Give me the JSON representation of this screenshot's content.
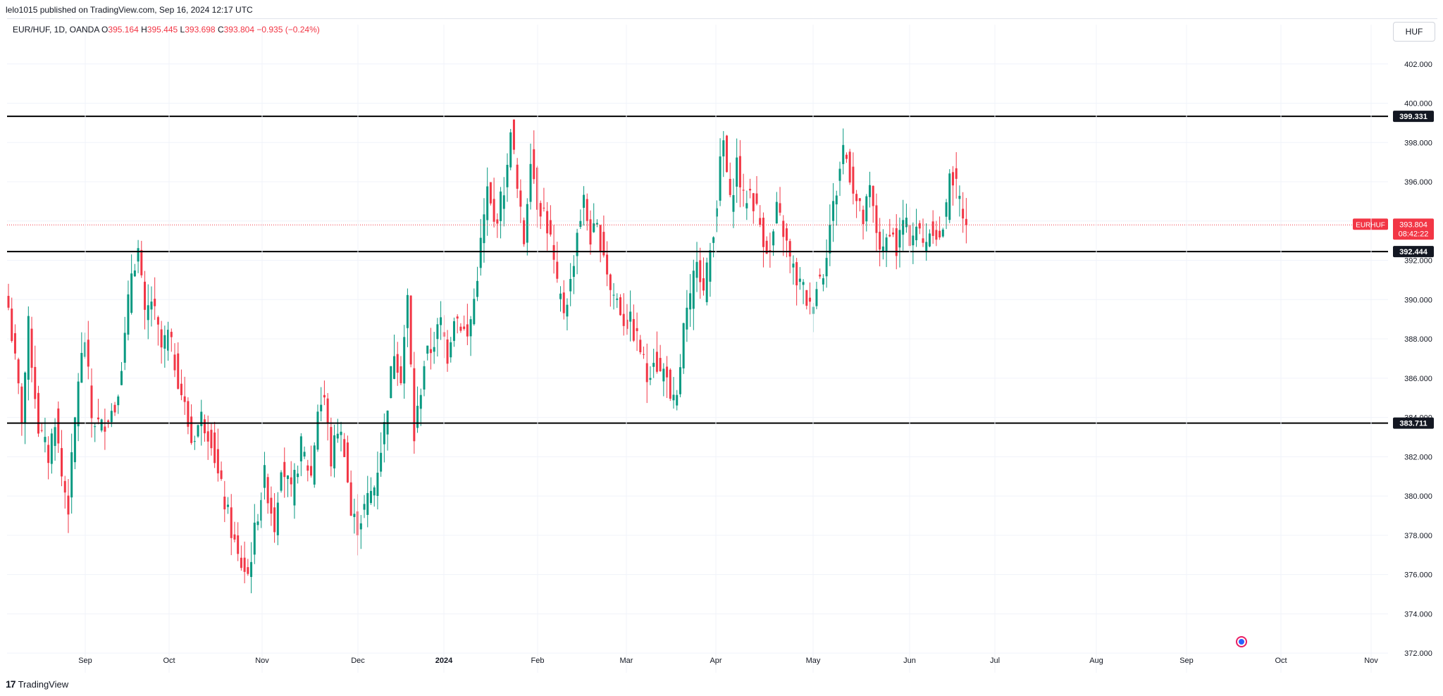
{
  "header": {
    "publisher": "lelo1015 published on TradingView.com, Sep 16, 2024 12:17 UTC"
  },
  "legend": {
    "symbol": "EUR/HUF, 1D, OANDA",
    "o_label": "O",
    "o_value": "395.164",
    "h_label": "H",
    "h_value": "395.445",
    "l_label": "L",
    "l_value": "393.698",
    "c_label": "C",
    "c_value": "393.804",
    "change": "−0.935 (−0.24%)"
  },
  "currency_button": "HUF",
  "footer": {
    "brand": "TradingView",
    "brand_icon": "tradingview-logo-icon"
  },
  "colors": {
    "up": "#089981",
    "down": "#f23645",
    "level_line": "#000000",
    "grid": "#f0f3fa"
  },
  "chart_data": {
    "type": "candlestick",
    "symbol": "EUR/HUF",
    "interval": "1D",
    "exchange": "OANDA",
    "ylim": [
      371,
      404
    ],
    "y_ticks": [
      "402.000",
      "400.000",
      "398.000",
      "396.000",
      "394.000",
      "392.000",
      "390.000",
      "388.000",
      "386.000",
      "384.000",
      "382.000",
      "380.000",
      "378.000",
      "376.000",
      "374.000",
      "372.000"
    ],
    "x_ticks": [
      "Sep",
      "Oct",
      "Nov",
      "Dec",
      "2024",
      "Feb",
      "Mar",
      "Apr",
      "May",
      "Jun",
      "Jul",
      "Aug",
      "Sep",
      "Oct",
      "Nov"
    ],
    "grid": true,
    "last_price": {
      "symbol": "EURHUF",
      "value": 393.804,
      "countdown": "08:42:22"
    },
    "horizontal_levels": [
      399.331,
      392.444,
      383.711
    ],
    "horizontal_level_labels": [
      "399.331",
      "392.444",
      "383.711"
    ],
    "anchor_points": [
      [
        0,
        389.6
      ],
      [
        4,
        384.0
      ],
      [
        6,
        388.6
      ],
      [
        9,
        383.5
      ],
      [
        12,
        382.0
      ],
      [
        14,
        384.0
      ],
      [
        16,
        381.0
      ],
      [
        18,
        379.5
      ],
      [
        21,
        386.0
      ],
      [
        23,
        388.0
      ],
      [
        25,
        384.0
      ],
      [
        28,
        383.5
      ],
      [
        30,
        384.2
      ],
      [
        32,
        384.5
      ],
      [
        35,
        388.0
      ],
      [
        37,
        391.5
      ],
      [
        39,
        392.5
      ],
      [
        41,
        389.0
      ],
      [
        43,
        390.0
      ],
      [
        46,
        387.5
      ],
      [
        48,
        388.2
      ],
      [
        50,
        386.8
      ],
      [
        53,
        384.5
      ],
      [
        55,
        382.8
      ],
      [
        58,
        384.0
      ],
      [
        61,
        383.0
      ],
      [
        63,
        381.0
      ],
      [
        66,
        379.0
      ],
      [
        69,
        376.8
      ],
      [
        72,
        376.0
      ],
      [
        75,
        379.2
      ],
      [
        77,
        381.0
      ],
      [
        80,
        378.5
      ],
      [
        82,
        381.8
      ],
      [
        85,
        380.0
      ],
      [
        88,
        382.5
      ],
      [
        91,
        381.0
      ],
      [
        93,
        384.5
      ],
      [
        95,
        385.0
      ],
      [
        97,
        381.8
      ],
      [
        99,
        383.5
      ],
      [
        101,
        382.5
      ],
      [
        103,
        379.0
      ],
      [
        105,
        378.5
      ],
      [
        108,
        379.8
      ],
      [
        110,
        380.5
      ],
      [
        113,
        383.5
      ],
      [
        116,
        387.5
      ],
      [
        118,
        386.2
      ],
      [
        120,
        390.0
      ],
      [
        122,
        383.0
      ],
      [
        125,
        386.8
      ],
      [
        127,
        387.5
      ],
      [
        130,
        388.8
      ],
      [
        132,
        387.2
      ],
      [
        134,
        389.3
      ],
      [
        136,
        388.8
      ],
      [
        138,
        388.0
      ],
      [
        140,
        390.0
      ],
      [
        142,
        392.8
      ],
      [
        144,
        395.5
      ],
      [
        146,
        393.8
      ],
      [
        148,
        395.0
      ],
      [
        150,
        396.5
      ],
      [
        151,
        399.0
      ],
      [
        153,
        395.5
      ],
      [
        155,
        393.0
      ],
      [
        157,
        397.5
      ],
      [
        159,
        395.0
      ],
      [
        161,
        394.5
      ],
      [
        163,
        393.0
      ],
      [
        165,
        390.5
      ],
      [
        167,
        389.5
      ],
      [
        169,
        390.8
      ],
      [
        171,
        393.5
      ],
      [
        173,
        395.0
      ],
      [
        175,
        393.2
      ],
      [
        177,
        393.5
      ],
      [
        179,
        392.5
      ],
      [
        181,
        390.5
      ],
      [
        183,
        390.0
      ],
      [
        185,
        389.0
      ],
      [
        187,
        388.8
      ],
      [
        190,
        387.5
      ],
      [
        192,
        386.0
      ],
      [
        194,
        387.2
      ],
      [
        196,
        386.2
      ],
      [
        198,
        386.5
      ],
      [
        199,
        384.5
      ],
      [
        201,
        384.8
      ],
      [
        203,
        388.5
      ],
      [
        205,
        389.8
      ],
      [
        207,
        392.5
      ],
      [
        209,
        390.3
      ],
      [
        211,
        392.5
      ],
      [
        213,
        395.0
      ],
      [
        214,
        396.8
      ],
      [
        215,
        398.0
      ],
      [
        217,
        394.8
      ],
      [
        219,
        397.0
      ],
      [
        221,
        395.0
      ],
      [
        223,
        395.5
      ],
      [
        225,
        394.5
      ],
      [
        227,
        393.2
      ],
      [
        229,
        392.3
      ],
      [
        231,
        394.5
      ],
      [
        233,
        393.5
      ],
      [
        235,
        392.0
      ],
      [
        237,
        391.0
      ],
      [
        239,
        390.5
      ],
      [
        241,
        389.5
      ],
      [
        243,
        390.8
      ],
      [
        245,
        391.5
      ],
      [
        247,
        393.8
      ],
      [
        249,
        395.6
      ],
      [
        251,
        397.8
      ],
      [
        253,
        396.5
      ],
      [
        255,
        395.0
      ],
      [
        257,
        394.0
      ],
      [
        259,
        395.5
      ],
      [
        261,
        393.5
      ],
      [
        263,
        392.2
      ],
      [
        265,
        393.8
      ],
      [
        267,
        392.5
      ],
      [
        269,
        394.0
      ],
      [
        271,
        393.2
      ],
      [
        273,
        393.8
      ],
      [
        275,
        392.8
      ],
      [
        276,
        393.2
      ],
      [
        278,
        393.8
      ],
      [
        280,
        393.0
      ],
      [
        282,
        394.5
      ],
      [
        283,
        396.8
      ],
      [
        285,
        395.6
      ],
      [
        287,
        394.5
      ],
      [
        288,
        393.804
      ]
    ]
  }
}
